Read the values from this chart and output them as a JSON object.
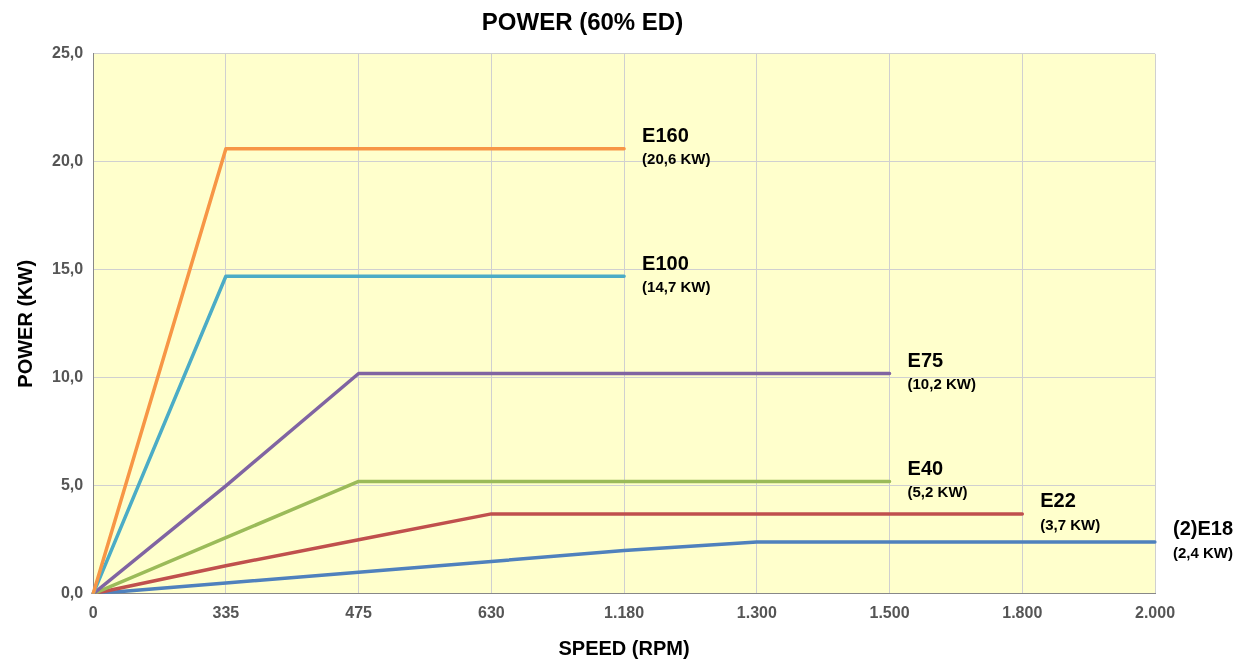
{
  "chart_data": {
    "type": "line",
    "title": "POWER (60% ED)",
    "xlabel": "SPEED (RPM)",
    "ylabel": "POWER (KW)",
    "categories": [
      "0",
      "335",
      "475",
      "630",
      "1.180",
      "1.300",
      "1.500",
      "1.800",
      "2.000"
    ],
    "series": [
      {
        "name": "E160",
        "color": "#f79646",
        "values": [
          0,
          20.6,
          20.6,
          20.6,
          20.6,
          null,
          null,
          null,
          null
        ]
      },
      {
        "name": "E100",
        "color": "#4bacc6",
        "values": [
          0,
          14.7,
          14.7,
          14.7,
          14.7,
          null,
          null,
          null,
          null
        ]
      },
      {
        "name": "E75",
        "color": "#8064a2",
        "values": [
          0,
          5.0,
          10.2,
          10.2,
          10.2,
          10.2,
          10.2,
          null,
          null
        ]
      },
      {
        "name": "E40",
        "color": "#9bbb59",
        "values": [
          0,
          2.6,
          5.2,
          5.2,
          5.2,
          5.2,
          5.2,
          null,
          null
        ]
      },
      {
        "name": "E22",
        "color": "#c0504d",
        "values": [
          0,
          1.3,
          2.5,
          3.7,
          3.7,
          3.7,
          3.7,
          3.7,
          null
        ]
      },
      {
        "name": "(2)E18",
        "color": "#4f81bd",
        "values": [
          0,
          0.5,
          1.0,
          1.5,
          2.0,
          2.4,
          2.4,
          2.4,
          2.4
        ]
      }
    ],
    "annotations": [
      {
        "text": "(20,6 KW)",
        "x": "1.180",
        "y": 20.6
      },
      {
        "text": "(14,7 KW)",
        "x": "1.180",
        "y": 14.7
      },
      {
        "text": "(10,2 KW)",
        "x": "1.500",
        "y": 10.2
      },
      {
        "text": "(5,2 KW)",
        "x": "1.500",
        "y": 5.2
      },
      {
        "text": "(3,7 KW)",
        "x": "1.800",
        "y": 3.7
      },
      {
        "text": "(2,4 KW)",
        "x": "2.000",
        "y": 2.4
      }
    ],
    "ylim": [
      0,
      25
    ],
    "yticks": [
      {
        "value": 0,
        "label": "0,0"
      },
      {
        "value": 5,
        "label": "5,0"
      },
      {
        "value": 10,
        "label": "10,0"
      },
      {
        "value": 15,
        "label": "15,0"
      },
      {
        "value": 20,
        "label": "20,0"
      },
      {
        "value": 25,
        "label": "25,0"
      }
    ],
    "grid": true,
    "legend": false,
    "marker": "none",
    "line_style": "solid"
  }
}
